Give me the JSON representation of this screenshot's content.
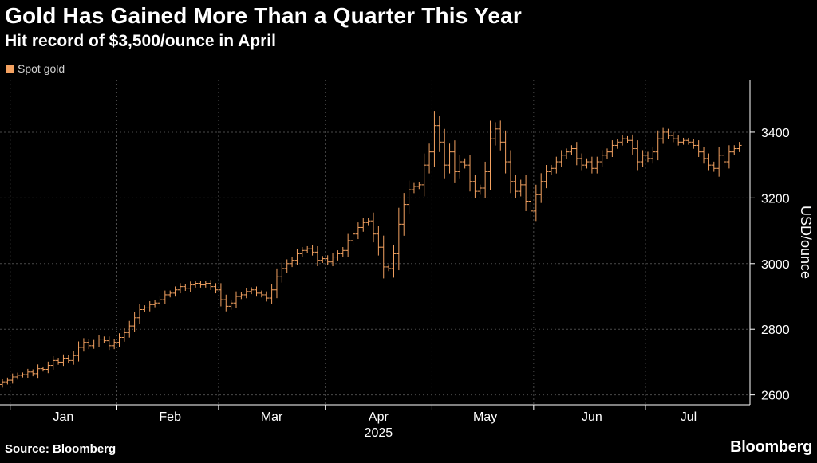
{
  "title": "Gold Has Gained More Than a Quarter This Year",
  "subtitle": "Hit record of $3,500/ounce in April",
  "source": "Source: Bloomberg",
  "brand": "Bloomberg",
  "colors": {
    "series": "#f4a261",
    "background": "#000000",
    "grid": "#4a4a4a",
    "axis": "#ffffff"
  },
  "chart_data": {
    "type": "ohlc",
    "title": "Gold Has Gained More Than a Quarter This Year",
    "subtitle": "Hit record of $3,500/ounce in April",
    "legend": [
      "Spot gold"
    ],
    "ylabel": "USD/ounce",
    "xlabel": "2025",
    "ylim": [
      2570,
      3560
    ],
    "yticks": [
      2600,
      2800,
      3000,
      3200,
      3400
    ],
    "ytick_labels": [
      "2600",
      "2800",
      "3000",
      "3200",
      "3400"
    ],
    "month_labels": [
      "Jan",
      "Feb",
      "Mar",
      "Apr",
      "May",
      "Jun",
      "Jul"
    ],
    "year_label": "2025",
    "x_range": [
      0,
      146
    ],
    "month_starts": [
      2,
      23,
      43,
      64,
      85,
      105,
      127
    ],
    "month_label_positions": [
      12,
      33,
      53,
      74,
      95,
      116,
      135
    ],
    "close": [
      2640,
      2645,
      2655,
      2660,
      2662,
      2670,
      2665,
      2680,
      2678,
      2690,
      2705,
      2700,
      2712,
      2705,
      2720,
      2745,
      2760,
      2750,
      2758,
      2770,
      2765,
      2750,
      2760,
      2775,
      2790,
      2810,
      2835,
      2860,
      2865,
      2875,
      2880,
      2890,
      2905,
      2910,
      2920,
      2930,
      2925,
      2935,
      2940,
      2935,
      2940,
      2930,
      2920,
      2890,
      2870,
      2880,
      2900,
      2905,
      2915,
      2920,
      2910,
      2905,
      2895,
      2920,
      2960,
      2985,
      3000,
      3010,
      3030,
      3040,
      3045,
      3035,
      3010,
      3015,
      3005,
      3020,
      3030,
      3040,
      3070,
      3090,
      3110,
      3125,
      3130,
      3090,
      3050,
      2990,
      2985,
      3030,
      3120,
      3180,
      3225,
      3235,
      3240,
      3300,
      3340,
      3420,
      3370,
      3300,
      3340,
      3280,
      3310,
      3300,
      3250,
      3220,
      3230,
      3280,
      3380,
      3410,
      3370,
      3310,
      3250,
      3220,
      3240,
      3190,
      3160,
      3210,
      3250,
      3280,
      3290,
      3310,
      3330,
      3340,
      3350,
      3320,
      3300,
      3310,
      3290,
      3310,
      3330,
      3340,
      3360,
      3370,
      3380,
      3375,
      3350,
      3310,
      3330,
      3320,
      3340,
      3380,
      3400,
      3390,
      3380,
      3370,
      3375,
      3370,
      3360,
      3340,
      3320,
      3300,
      3290,
      3330,
      3310,
      3340,
      3350,
      3360
    ]
  }
}
